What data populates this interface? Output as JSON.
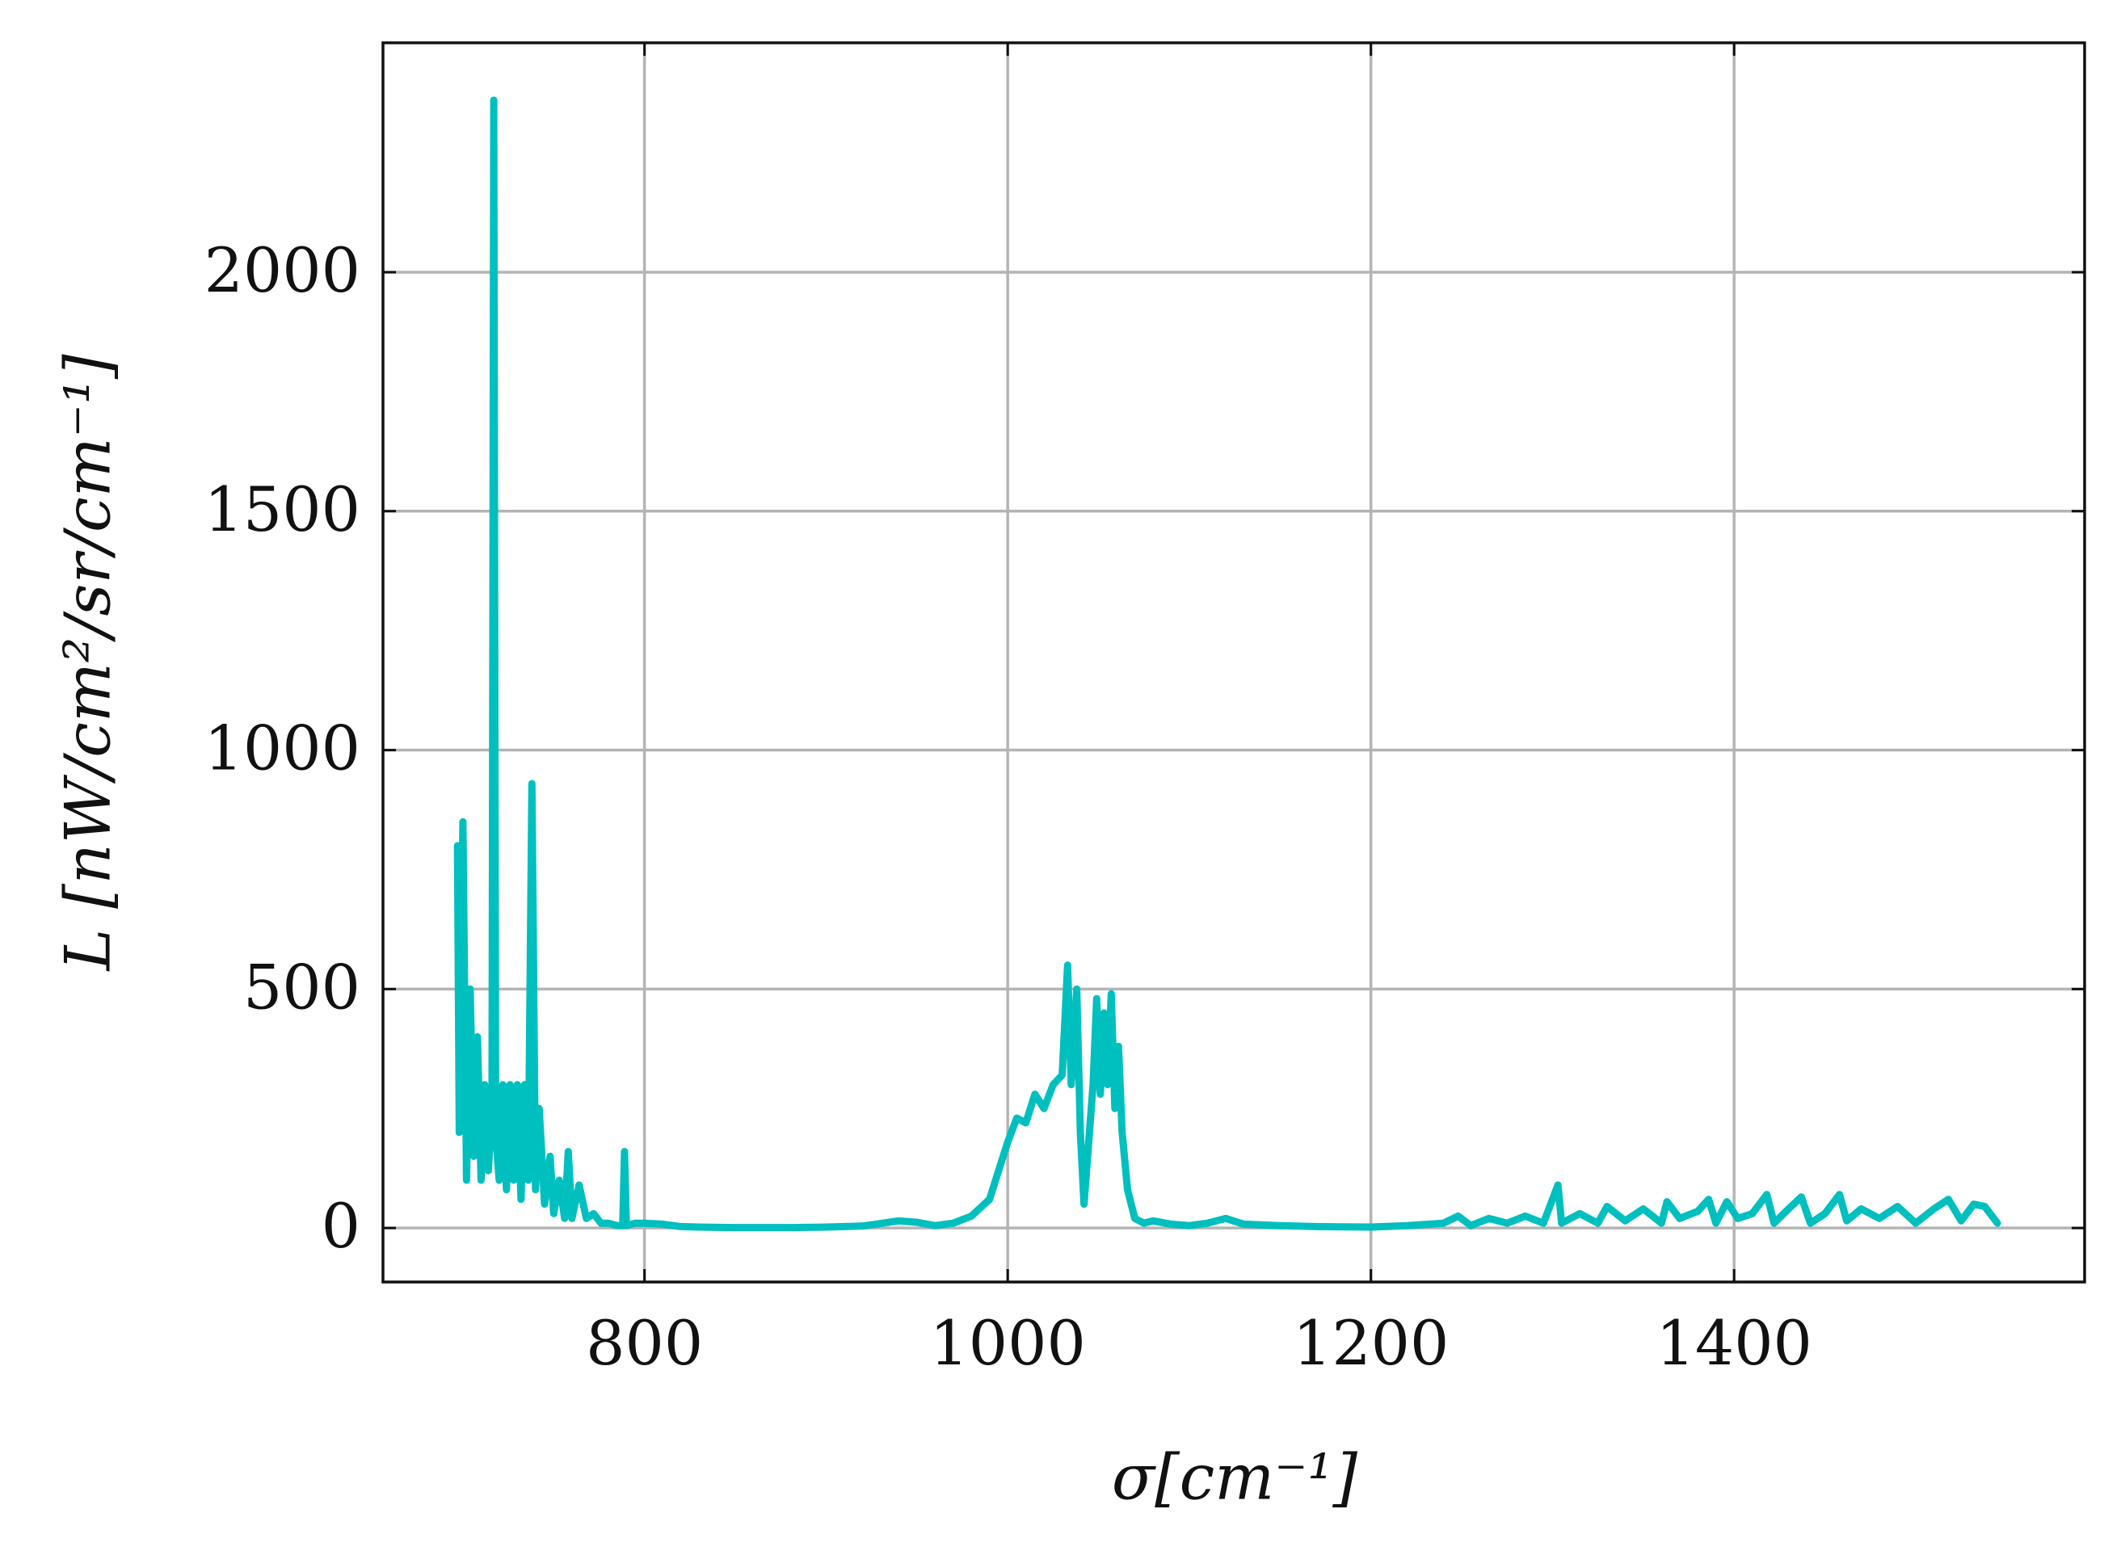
{
  "chart_data": {
    "type": "line",
    "x_label": "σ[cm⁻¹]",
    "y_label": "L [nW/cm²/sr/cm⁻¹]",
    "xlim": [
      656,
      1593
    ],
    "ylim": [
      -113,
      2480
    ],
    "xticks": [
      800,
      1000,
      1200,
      1400
    ],
    "yticks": [
      0,
      500,
      1000,
      1500,
      2000
    ],
    "grid": true,
    "color": "#00bfbf",
    "x": [
      697,
      698,
      700,
      702,
      704,
      706,
      708,
      710,
      712,
      714,
      716,
      717,
      718,
      720,
      722,
      724,
      726,
      728,
      730,
      732,
      734,
      736,
      738,
      740,
      742,
      745,
      748,
      750,
      753,
      756,
      758,
      760,
      764,
      768,
      772,
      776,
      780,
      785,
      788,
      789,
      790,
      795,
      800,
      810,
      820,
      830,
      850,
      880,
      900,
      920,
      940,
      950,
      960,
      970,
      980,
      990,
      995,
      1000,
      1005,
      1010,
      1015,
      1020,
      1025,
      1030,
      1033,
      1035,
      1038,
      1040,
      1042,
      1044,
      1047,
      1049,
      1051,
      1053,
      1055,
      1057,
      1059,
      1061,
      1063,
      1066,
      1070,
      1075,
      1080,
      1090,
      1100,
      1110,
      1120,
      1130,
      1150,
      1170,
      1200,
      1220,
      1240,
      1248,
      1255,
      1265,
      1275,
      1285,
      1295,
      1303,
      1305,
      1315,
      1325,
      1330,
      1340,
      1350,
      1360,
      1363,
      1370,
      1380,
      1386,
      1390,
      1396,
      1402,
      1410,
      1418,
      1422,
      1430,
      1437,
      1442,
      1450,
      1458,
      1462,
      1470,
      1480,
      1490,
      1500,
      1510,
      1518,
      1525,
      1532,
      1538,
      1545
    ],
    "values": [
      800,
      200,
      850,
      100,
      500,
      150,
      400,
      100,
      300,
      120,
      250,
      2360,
      200,
      100,
      300,
      80,
      300,
      100,
      300,
      60,
      300,
      100,
      930,
      80,
      250,
      50,
      150,
      30,
      100,
      20,
      160,
      20,
      90,
      20,
      30,
      10,
      10,
      5,
      5,
      160,
      5,
      10,
      10,
      8,
      3,
      2,
      1,
      1,
      2,
      4,
      15,
      12,
      5,
      10,
      25,
      60,
      120,
      180,
      230,
      220,
      280,
      250,
      300,
      320,
      550,
      300,
      500,
      200,
      50,
      150,
      300,
      480,
      280,
      450,
      300,
      490,
      250,
      380,
      200,
      80,
      20,
      10,
      15,
      8,
      5,
      10,
      20,
      8,
      5,
      3,
      2,
      5,
      10,
      25,
      5,
      20,
      10,
      25,
      10,
      90,
      10,
      30,
      10,
      45,
      15,
      40,
      10,
      55,
      20,
      35,
      60,
      10,
      55,
      20,
      30,
      70,
      10,
      40,
      65,
      10,
      30,
      70,
      15,
      40,
      20,
      45,
      10,
      40,
      60,
      15,
      50,
      45,
      10
    ]
  }
}
